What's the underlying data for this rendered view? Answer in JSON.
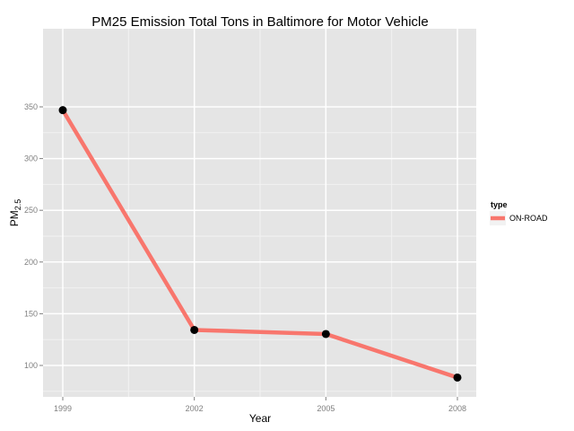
{
  "chart_data": {
    "type": "line",
    "title": "PM25 Emission Total Tons in Baltimore for Motor Vehicle",
    "xlabel": "Year",
    "ylabel": "PM",
    "ylabel_subscript": "2.5",
    "x_ticks": [
      "1999",
      "2002",
      "2005",
      "2008"
    ],
    "y_ticks": [
      "100",
      "150",
      "200",
      "250",
      "300",
      "350"
    ],
    "xlim": [
      1999,
      2008
    ],
    "ylim": [
      80,
      355
    ],
    "grid": true,
    "legend_position": "right",
    "legend_title": "type",
    "series": [
      {
        "name": "ON-ROAD",
        "color": "#f8766d",
        "x": [
          1999,
          2002,
          2005,
          2008
        ],
        "values": [
          346.8,
          134.3,
          130.4,
          88.3
        ]
      }
    ],
    "colors": {
      "panel": "#e5e5e5",
      "grid_major": "#ffffff",
      "grid_minor": "#f2f2f2",
      "point": "#000000",
      "tick": "#7f7f7f"
    }
  }
}
